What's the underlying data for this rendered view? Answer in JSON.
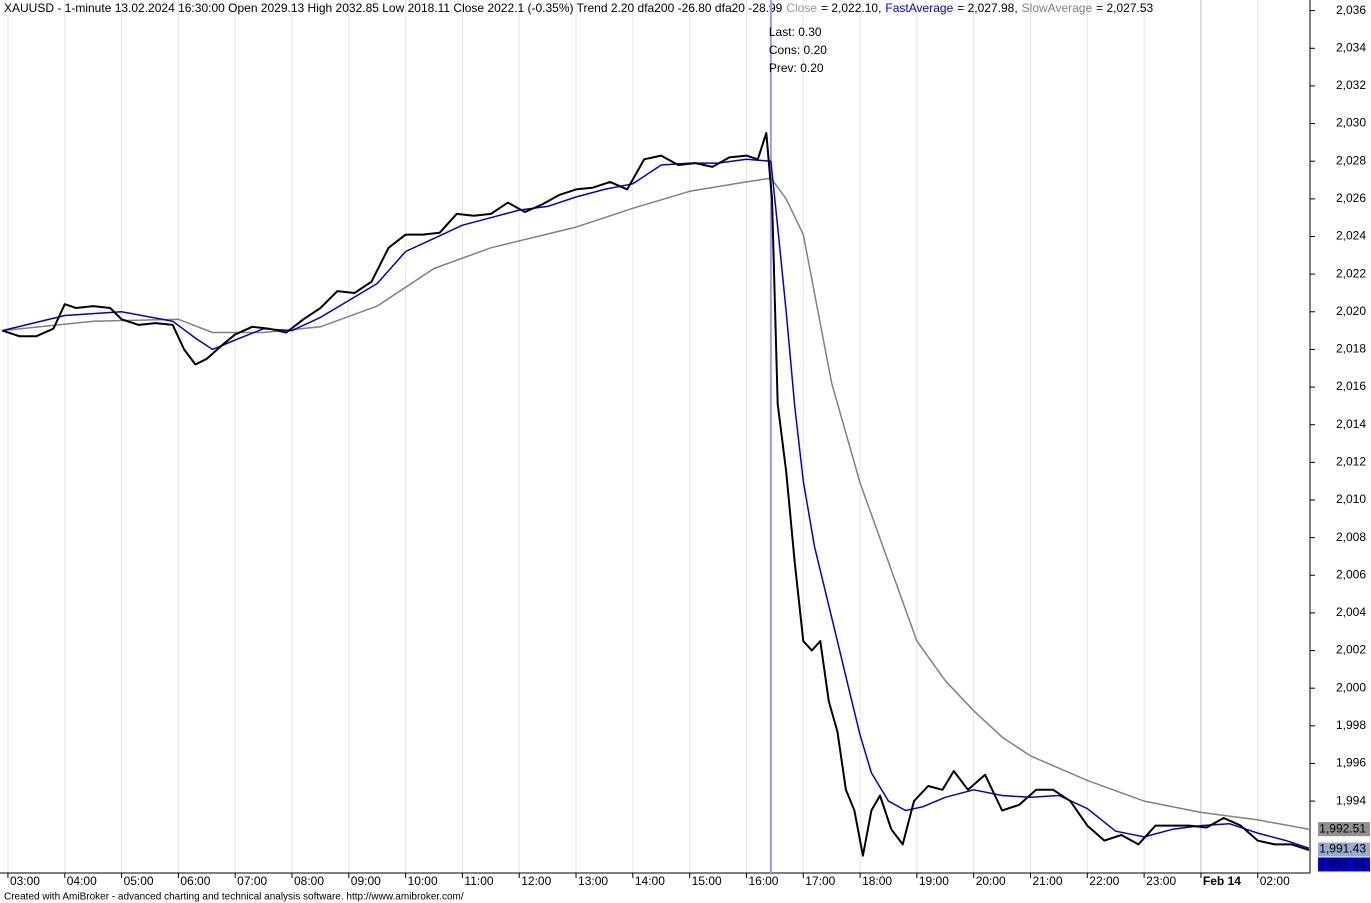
{
  "chart_data": {
    "type": "line",
    "title": "XAUUSD - 1-minute 13.02.2024 16:30:00 Open 2029.13 High 2032.85 Low 2018.11 Close 2022.1 (-0.35%) Trend 2.20 dfa200 -26.80 dfa20 -28.99",
    "footer": "Created with AmiBroker - advanced charting and technical analysis software. http://www.amibroker.com/",
    "xlim": [
      -0.14,
      22.92
    ],
    "ylim": [
      1990.18,
      2036.3
    ],
    "xticks": [
      {
        "value": 0,
        "label": "03:00"
      },
      {
        "value": 1,
        "label": "04:00"
      },
      {
        "value": 2,
        "label": "05:00"
      },
      {
        "value": 3,
        "label": "06:00"
      },
      {
        "value": 4,
        "label": "07:00"
      },
      {
        "value": 5,
        "label": "08:00"
      },
      {
        "value": 6,
        "label": "09:00"
      },
      {
        "value": 7,
        "label": "10:00"
      },
      {
        "value": 8,
        "label": "11:00"
      },
      {
        "value": 9,
        "label": "12:00"
      },
      {
        "value": 10,
        "label": "13:00"
      },
      {
        "value": 11,
        "label": "14:00"
      },
      {
        "value": 12,
        "label": "15:00"
      },
      {
        "value": 13,
        "label": "16:00"
      },
      {
        "value": 14,
        "label": "17:00"
      },
      {
        "value": 15,
        "label": "18:00"
      },
      {
        "value": 16,
        "label": "19:00"
      },
      {
        "value": 17,
        "label": "20:00"
      },
      {
        "value": 18,
        "label": "21:00"
      },
      {
        "value": 19,
        "label": "22:00"
      },
      {
        "value": 20,
        "label": "23:00"
      },
      {
        "value": 21,
        "label": "Feb 14"
      },
      {
        "value": 22,
        "label": "02:00"
      }
    ],
    "yticks": [
      {
        "value": 1994,
        "label": "1,994"
      },
      {
        "value": 1996,
        "label": "1,996"
      },
      {
        "value": 1998,
        "label": "1,998"
      },
      {
        "value": 2000,
        "label": "2,000"
      },
      {
        "value": 2002,
        "label": "2,002"
      },
      {
        "value": 2004,
        "label": "2,004"
      },
      {
        "value": 2006,
        "label": "2,006"
      },
      {
        "value": 2008,
        "label": "2,008"
      },
      {
        "value": 2010,
        "label": "2,010"
      },
      {
        "value": 2012,
        "label": "2,012"
      },
      {
        "value": 2014,
        "label": "2,014"
      },
      {
        "value": 2016,
        "label": "2,016"
      },
      {
        "value": 2018,
        "label": "2,018"
      },
      {
        "value": 2020,
        "label": "2,020"
      },
      {
        "value": 2022,
        "label": "2,022"
      },
      {
        "value": 2024,
        "label": "2,024"
      },
      {
        "value": 2026,
        "label": "2,026"
      },
      {
        "value": 2028,
        "label": "2,028"
      },
      {
        "value": 2030,
        "label": "2,030"
      },
      {
        "value": 2032,
        "label": "2,032"
      },
      {
        "value": 2034,
        "label": "2,034"
      },
      {
        "value": 2036,
        "label": "2,036"
      }
    ],
    "grid": true,
    "cursor_x": 13.43,
    "cursor_color": "#9999ff",
    "annotations": [
      "Last: 0.30",
      "Cons: 0.20",
      "Prev: 0.20"
    ],
    "annotation_color": "#008000",
    "series": [
      {
        "name": "Close",
        "readout": "= 2,022.10",
        "color": "#000000",
        "label_color": "#999999",
        "width": 2,
        "x": [
          -0.1,
          0.2,
          0.5,
          0.8,
          1.0,
          1.2,
          1.5,
          1.8,
          2.0,
          2.3,
          2.6,
          2.9,
          3.1,
          3.3,
          3.5,
          3.8,
          4.0,
          4.3,
          4.6,
          4.9,
          5.2,
          5.5,
          5.8,
          6.1,
          6.4,
          6.7,
          7.0,
          7.3,
          7.6,
          7.9,
          8.2,
          8.5,
          8.8,
          9.1,
          9.4,
          9.7,
          10.0,
          10.3,
          10.6,
          10.9,
          11.2,
          11.5,
          11.8,
          12.1,
          12.4,
          12.7,
          13.0,
          13.2,
          13.35,
          13.45,
          13.55,
          13.7,
          13.85,
          14.0,
          14.15,
          14.3,
          14.45,
          14.6,
          14.75,
          14.9,
          15.05,
          15.2,
          15.35,
          15.55,
          15.75,
          15.95,
          16.2,
          16.45,
          16.65,
          16.9,
          17.2,
          17.5,
          17.8,
          18.1,
          18.4,
          18.7,
          19.0,
          19.3,
          19.6,
          19.9,
          20.2,
          20.5,
          20.8,
          21.1,
          21.4,
          21.7,
          22.0,
          22.3,
          22.6,
          22.9
        ],
        "values": [
          2019.0,
          2018.7,
          2018.7,
          2019.1,
          2020.4,
          2020.2,
          2020.3,
          2020.2,
          2019.6,
          2019.3,
          2019.4,
          2019.3,
          2018.0,
          2017.2,
          2017.5,
          2018.3,
          2018.8,
          2019.2,
          2019.1,
          2018.9,
          2019.6,
          2020.2,
          2021.1,
          2021.0,
          2021.6,
          2023.4,
          2024.1,
          2024.1,
          2024.2,
          2025.2,
          2025.1,
          2025.2,
          2025.8,
          2025.3,
          2025.7,
          2026.2,
          2026.5,
          2026.6,
          2026.9,
          2026.5,
          2028.1,
          2028.3,
          2027.8,
          2027.9,
          2027.7,
          2028.2,
          2028.3,
          2028.1,
          2029.5,
          2026.0,
          2015.1,
          2011.5,
          2006.7,
          2002.5,
          2002.0,
          2002.5,
          1999.3,
          1997.7,
          1994.6,
          1993.5,
          1991.1,
          1993.5,
          1994.3,
          1992.5,
          1991.7,
          1994.0,
          1994.8,
          1994.6,
          1995.6,
          1994.6,
          1995.4,
          1993.5,
          1993.8,
          1994.6,
          1994.6,
          1994.0,
          1992.7,
          1991.9,
          1992.2,
          1991.7,
          1992.7,
          1992.7,
          1992.7,
          1992.6,
          1993.1,
          1992.7,
          1991.9,
          1991.7,
          1991.7,
          1991.4
        ]
      },
      {
        "name": "FastAverage",
        "readout": "= 2,027.98",
        "color": "#0000cc",
        "label_color": "#0000cc",
        "width": 1.5,
        "x": [
          -0.1,
          1.0,
          2.0,
          2.9,
          3.3,
          3.6,
          4.0,
          4.5,
          5.0,
          5.5,
          6.0,
          6.5,
          7.0,
          7.5,
          8.0,
          8.5,
          9.0,
          9.5,
          10.0,
          10.5,
          11.0,
          11.5,
          12.0,
          12.5,
          13.0,
          13.43,
          13.55,
          13.7,
          13.85,
          14.0,
          14.2,
          14.4,
          14.6,
          14.8,
          15.0,
          15.2,
          15.5,
          15.8,
          16.1,
          16.5,
          17.0,
          17.5,
          18.0,
          18.5,
          19.0,
          19.5,
          20.0,
          20.5,
          21.0,
          21.5,
          22.0,
          22.5,
          22.9
        ],
        "values": [
          2019.0,
          2019.8,
          2020.0,
          2019.5,
          2018.6,
          2018.0,
          2018.5,
          2019.1,
          2019.0,
          2019.7,
          2020.6,
          2021.5,
          2023.2,
          2023.9,
          2024.6,
          2025.0,
          2025.4,
          2025.6,
          2026.1,
          2026.5,
          2026.8,
          2027.8,
          2027.9,
          2027.9,
          2028.1,
          2028.0,
          2024.5,
          2020.0,
          2015.0,
          2011.0,
          2007.5,
          2005.0,
          2002.5,
          2000.0,
          1997.5,
          1995.5,
          1994.0,
          1993.5,
          1993.7,
          1994.2,
          1994.6,
          1994.3,
          1994.2,
          1994.3,
          1993.6,
          1992.4,
          1992.1,
          1992.5,
          1992.7,
          1992.8,
          1992.3,
          1991.9,
          1991.5
        ]
      },
      {
        "name": "SlowAverage",
        "readout": "= 2,027.53",
        "color": "#808080",
        "label_color": "#808080",
        "width": 1.5,
        "x": [
          -0.1,
          1.5,
          3.0,
          3.6,
          4.5,
          5.5,
          6.5,
          7.5,
          8.5,
          10.0,
          11.0,
          12.0,
          13.0,
          13.43,
          13.7,
          14.0,
          14.5,
          15.0,
          15.5,
          16.0,
          16.5,
          17.0,
          17.5,
          18.0,
          19.0,
          20.0,
          21.0,
          22.0,
          22.9
        ],
        "values": [
          2019.0,
          2019.5,
          2019.6,
          2018.9,
          2018.9,
          2019.2,
          2020.3,
          2022.3,
          2023.4,
          2024.5,
          2025.5,
          2026.4,
          2026.9,
          2027.1,
          2026.0,
          2024.1,
          2016.2,
          2010.9,
          2006.7,
          2002.5,
          2000.4,
          1998.8,
          1997.4,
          1996.4,
          1995.1,
          1994.0,
          1993.4,
          1993.0,
          1992.5
        ]
      }
    ],
    "price_labels": [
      {
        "value": 1992.51,
        "label": "1,992.51",
        "color": "#909090",
        "text_color": "#000000"
      },
      {
        "value": 1991.43,
        "label": "1,991.43",
        "color": "#99aacc",
        "text_color": "#000000"
      },
      {
        "value": 1991.41,
        "label": "1,991.41",
        "color": "#0000cc",
        "text_color": "#ffffff"
      }
    ]
  }
}
